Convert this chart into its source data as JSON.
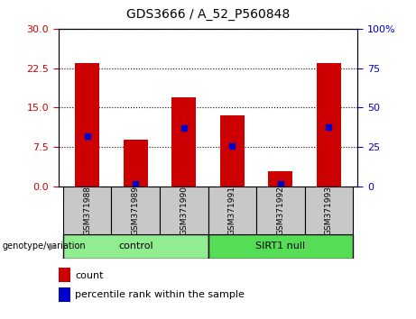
{
  "title": "GDS3666 / A_52_P560848",
  "samples": [
    "GSM371988",
    "GSM371989",
    "GSM371990",
    "GSM371991",
    "GSM371992",
    "GSM371993"
  ],
  "count_values": [
    23.5,
    9.0,
    17.0,
    13.5,
    3.0,
    23.5
  ],
  "percentile_values": [
    32,
    2,
    37,
    26,
    2,
    38
  ],
  "groups": [
    {
      "label": "control",
      "color": "#90EE90",
      "start": 0,
      "end": 3
    },
    {
      "label": "SIRT1 null",
      "color": "#55DD55",
      "start": 3,
      "end": 6
    }
  ],
  "ylim_left": [
    0,
    30
  ],
  "ylim_right": [
    0,
    100
  ],
  "yticks_left": [
    0,
    7.5,
    15,
    22.5,
    30
  ],
  "yticks_right": [
    0,
    25,
    50,
    75,
    100
  ],
  "bar_color": "#CC0000",
  "marker_color": "#0000CC",
  "bar_width": 0.5,
  "bg_color": "#FFFFFF",
  "axis_color_left": "#CC0000",
  "axis_color_right": "#0000CC",
  "xlabel": "genotype/variation",
  "legend_count": "count",
  "legend_percentile": "percentile rank within the sample",
  "group_bar_bg": "#C8C8C8"
}
